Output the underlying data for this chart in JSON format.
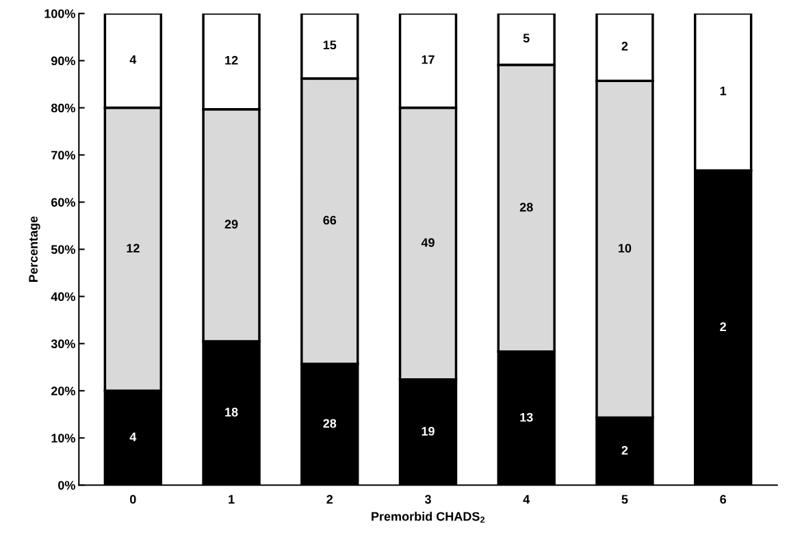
{
  "chart_data": {
    "type": "bar",
    "stacked": true,
    "xlabel": "Premorbid CHADS$_{2}$",
    "ylabel": "Percentage",
    "categories": [
      "0",
      "1",
      "2",
      "3",
      "4",
      "5",
      "6"
    ],
    "series": [
      {
        "color": "#000000",
        "values": [
          20,
          30.5,
          25.7,
          22.4,
          28.3,
          14.3,
          66.7
        ]
      },
      {
        "color": "#d9d9d9",
        "values": [
          60,
          49.2,
          60.5,
          57.6,
          60.8,
          71.4,
          0
        ]
      },
      {
        "color": "#ffffff",
        "values": [
          20,
          20.3,
          13.8,
          20,
          10.9,
          14.3,
          33.3
        ]
      }
    ],
    "annotations": [
      "4",
      "12",
      "4",
      "18",
      "29",
      "12",
      "28",
      "66",
      "15",
      "19",
      "49",
      "17",
      "13",
      "28",
      "5",
      "2",
      "10",
      "2",
      "2",
      "1"
    ],
    "ylim": [
      0,
      100
    ],
    "yticks": [
      {
        "value": 0,
        "label": "0%"
      },
      {
        "value": 10,
        "label": "10%"
      },
      {
        "value": 20,
        "label": "20%"
      },
      {
        "value": 30,
        "label": "30%"
      },
      {
        "value": 40,
        "label": "40%"
      },
      {
        "value": 50,
        "label": "50%"
      },
      {
        "value": 60,
        "label": "60%"
      },
      {
        "value": 70,
        "label": "70%"
      },
      {
        "value": 80,
        "label": "80%"
      },
      {
        "value": 90,
        "label": "90%"
      },
      {
        "value": 100,
        "label": "100%"
      }
    ],
    "grid": false,
    "legend": false
  }
}
